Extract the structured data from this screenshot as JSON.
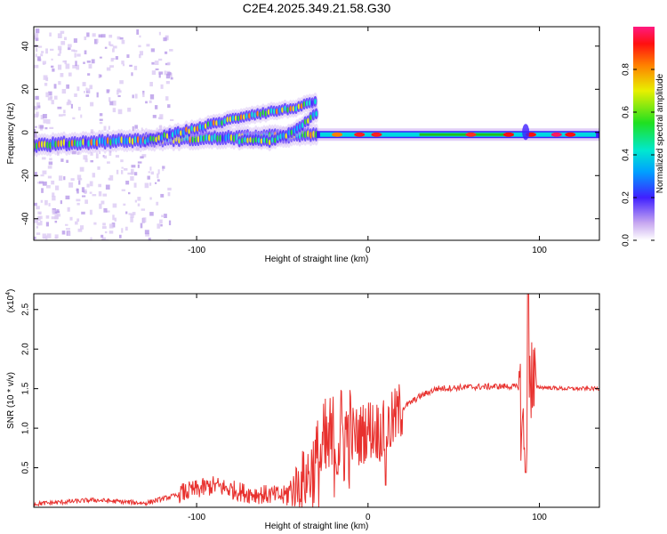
{
  "title": "C2E4.2025.349.21.58.G30",
  "chart_data": [
    {
      "type": "heatmap",
      "name": "spectrogram",
      "xlabel": "Height of straight line (km)",
      "ylabel": "Frequency (Hz)",
      "xlim": [
        -195,
        135
      ],
      "ylim": [
        -50,
        49
      ],
      "xticks": [
        -100,
        0,
        100
      ],
      "xtick_labels": [
        "-100",
        "0",
        "100"
      ],
      "yticks": [
        -40,
        -20,
        0,
        20,
        40
      ],
      "ytick_labels": [
        "-40",
        "-20",
        "0",
        "20",
        "40"
      ],
      "colorbar": {
        "label": "Normalized spectral amplitude",
        "range": [
          0,
          1
        ],
        "ticks": [
          0.0,
          0.2,
          0.4,
          0.6,
          0.8
        ],
        "tick_labels": [
          "0.0",
          "0.2",
          "0.4",
          "0.6",
          "0.8"
        ]
      },
      "features": [
        {
          "name": "main-band",
          "x": [
            -195,
            -150,
            -110,
            -60,
            -30,
            0,
            50,
            90,
            135
          ],
          "freq": [
            -6,
            -4,
            -3,
            -2,
            -1,
            -1,
            -1,
            -2,
            -1
          ]
        },
        {
          "name": "upper-branch",
          "x": [
            -130,
            -100,
            -70,
            -45,
            -30
          ],
          "freq": [
            -4,
            2,
            8,
            11,
            14
          ]
        },
        {
          "name": "lower-branch",
          "x": [
            -75,
            -55,
            -40,
            -30
          ],
          "freq": [
            -4,
            -4,
            2,
            9
          ]
        }
      ]
    },
    {
      "type": "line",
      "name": "snr",
      "xlabel": "Height of straight line (km)",
      "ylabel": "SNR (10 * v/v)",
      "yscale_label": "(x10",
      "yscale_exp": "4",
      "xlim": [
        -195,
        135
      ],
      "ylim": [
        0,
        27000
      ],
      "xticks": [
        -100,
        0,
        100
      ],
      "xtick_labels": [
        "-100",
        "0",
        "100"
      ],
      "yticks": [
        5000,
        10000,
        15000,
        20000,
        25000
      ],
      "ytick_labels": [
        "0.5",
        "1.0",
        "1.5",
        "2.0",
        "2.5"
      ],
      "color": "#e8312e",
      "series": [
        {
          "name": "SNR",
          "x": [
            -195,
            -160,
            -130,
            -110,
            -90,
            -70,
            -50,
            -35,
            -25,
            -15,
            -5,
            0,
            10,
            20,
            30,
            40,
            60,
            80,
            88,
            92,
            94,
            96,
            100,
            115,
            135
          ],
          "y": [
            300,
            800,
            400,
            1500,
            2500,
            1500,
            1200,
            4000,
            7000,
            9000,
            9000,
            10000,
            9500,
            12500,
            14000,
            15000,
            15200,
            15300,
            15200,
            5000,
            20000,
            15000,
            15200,
            15000,
            15000
          ]
        }
      ]
    }
  ]
}
